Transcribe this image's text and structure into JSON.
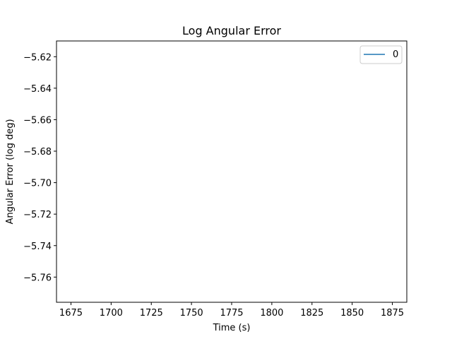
{
  "chart_data": {
    "type": "line",
    "title": "Log Angular Error",
    "xlabel": "Time (s)",
    "ylabel": "Angular Error (log deg)",
    "xlim": [
      1666,
      1884
    ],
    "ylim": [
      -5.776,
      -5.61
    ],
    "xticks": [
      1675,
      1700,
      1725,
      1750,
      1775,
      1800,
      1825,
      1850,
      1875
    ],
    "xtick_labels": [
      "1675",
      "1700",
      "1725",
      "1750",
      "1775",
      "1800",
      "1825",
      "1850",
      "1875"
    ],
    "yticks": [
      -5.62,
      -5.64,
      -5.66,
      -5.68,
      -5.7,
      -5.72,
      -5.74,
      -5.76
    ],
    "ytick_labels": [
      "−5.62",
      "−5.64",
      "−5.66",
      "−5.68",
      "−5.70",
      "−5.72",
      "−5.74",
      "−5.76"
    ],
    "series": [
      {
        "name": "0",
        "color": "#1f77b4",
        "x": [],
        "y": []
      }
    ],
    "legend": {
      "placement": "top-right"
    },
    "grid": false
  }
}
